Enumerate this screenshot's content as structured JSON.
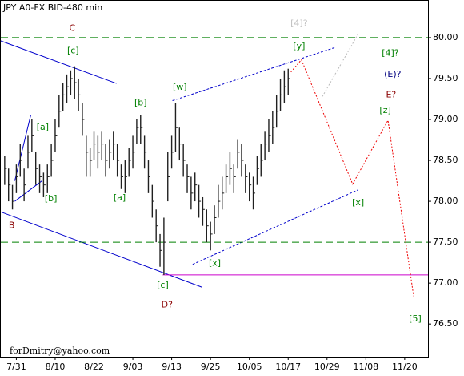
{
  "chart_data": {
    "type": "ohlc",
    "title": "JPY A0-FX BID-480 min",
    "footer": "forDmitry@yahoo.com",
    "bar_color": "#202020",
    "x": [
      -3,
      -2,
      -1,
      0,
      1,
      2,
      3,
      4,
      5,
      6,
      7,
      8,
      9,
      10,
      11,
      12,
      13,
      14,
      15,
      16,
      17,
      18,
      19,
      20,
      21,
      22,
      23,
      24,
      25,
      26,
      27,
      28,
      29,
      30,
      31,
      32,
      33,
      34,
      35,
      36,
      37,
      38,
      39,
      40,
      41,
      42,
      43,
      44,
      45,
      46,
      47,
      48,
      49,
      50,
      51,
      52,
      53,
      54,
      55,
      56,
      57,
      58,
      59,
      60,
      61,
      62,
      63,
      64,
      65,
      66,
      67,
      68,
      69,
      70
    ],
    "high": [
      78.55,
      78.4,
      78.2,
      78.45,
      78.7,
      78.4,
      78.8,
      79.0,
      78.6,
      78.45,
      78.35,
      78.45,
      78.7,
      79.0,
      79.3,
      79.45,
      79.55,
      79.6,
      79.65,
      79.5,
      79.2,
      78.8,
      78.65,
      78.85,
      78.8,
      78.85,
      78.7,
      78.75,
      78.85,
      78.7,
      78.45,
      78.5,
      78.65,
      78.8,
      79.0,
      79.05,
      78.8,
      78.5,
      78.2,
      77.9,
      77.6,
      77.8,
      78.6,
      78.8,
      79.2,
      78.9,
      78.7,
      78.45,
      78.3,
      78.35,
      78.2,
      78.05,
      77.9,
      77.75,
      77.95,
      78.2,
      78.3,
      78.45,
      78.6,
      78.45,
      78.75,
      78.7,
      78.45,
      78.35,
      78.3,
      78.55,
      78.7,
      78.85,
      79.0,
      79.1,
      79.3,
      79.5,
      79.6,
      79.62
    ],
    "low": [
      78.2,
      78.0,
      77.9,
      78.1,
      78.3,
      78.0,
      78.4,
      78.6,
      78.2,
      78.1,
      78.05,
      78.1,
      78.3,
      78.6,
      78.9,
      79.1,
      79.2,
      79.3,
      79.25,
      79.1,
      78.8,
      78.3,
      78.3,
      78.5,
      78.4,
      78.5,
      78.3,
      78.4,
      78.5,
      78.3,
      78.15,
      78.1,
      78.3,
      78.4,
      78.7,
      78.7,
      78.4,
      78.1,
      77.8,
      77.5,
      77.2,
      77.1,
      78.0,
      78.4,
      78.6,
      78.5,
      78.3,
      78.1,
      77.9,
      78.0,
      77.8,
      77.7,
      77.5,
      77.4,
      77.6,
      77.8,
      77.9,
      78.1,
      78.2,
      78.1,
      78.4,
      78.3,
      78.1,
      78.0,
      77.9,
      78.2,
      78.3,
      78.5,
      78.6,
      78.7,
      78.9,
      79.1,
      79.2,
      79.3
    ],
    "close": [
      78.4,
      78.2,
      78.0,
      78.3,
      78.5,
      78.2,
      78.6,
      78.8,
      78.4,
      78.3,
      78.2,
      78.3,
      78.5,
      78.8,
      79.1,
      79.3,
      79.4,
      79.5,
      79.45,
      79.3,
      79.0,
      78.6,
      78.5,
      78.7,
      78.6,
      78.7,
      78.5,
      78.6,
      78.7,
      78.5,
      78.3,
      78.3,
      78.5,
      78.6,
      78.9,
      78.9,
      78.6,
      78.3,
      78.0,
      77.7,
      77.4,
      77.5,
      78.3,
      78.6,
      78.9,
      78.7,
      78.5,
      78.3,
      78.1,
      78.2,
      78.0,
      77.9,
      77.7,
      77.6,
      77.8,
      78.0,
      78.1,
      78.3,
      78.4,
      78.3,
      78.6,
      78.5,
      78.3,
      78.2,
      78.1,
      78.4,
      78.5,
      78.7,
      78.8,
      78.9,
      79.1,
      79.3,
      79.4,
      79.5
    ],
    "xlim": [
      -4,
      106
    ],
    "xticks": [
      {
        "value": 0,
        "label": "7/31"
      },
      {
        "value": 10,
        "label": "8/10"
      },
      {
        "value": 20,
        "label": "8/22"
      },
      {
        "value": 30,
        "label": "9/03"
      },
      {
        "value": 40,
        "label": "9/13"
      },
      {
        "value": 50,
        "label": "9/25"
      },
      {
        "value": 60,
        "label": "10/05"
      },
      {
        "value": 70,
        "label": "10/17"
      },
      {
        "value": 80,
        "label": "10/29"
      },
      {
        "value": 90,
        "label": "11/08"
      },
      {
        "value": 100,
        "label": "11/20"
      }
    ],
    "ylim": [
      76.1,
      80.45
    ],
    "yticks": [
      {
        "value": 76.5,
        "label": "76.50"
      },
      {
        "value": 77,
        "label": "77.00"
      },
      {
        "value": 77.5,
        "label": "77.50"
      },
      {
        "value": 78,
        "label": "78.00"
      },
      {
        "value": 78.5,
        "label": "78.50"
      },
      {
        "value": 79,
        "label": "79.00"
      },
      {
        "value": 79.5,
        "label": "79.50"
      },
      {
        "value": 80,
        "label": "80.00"
      }
    ],
    "lines": [
      {
        "color": "#0000cc",
        "dash": "solid",
        "x": [
          -4,
          25.8
        ],
        "y": [
          79.96,
          79.44
        ]
      },
      {
        "color": "#0000cc",
        "dash": "solid",
        "x": [
          -4,
          47.8
        ],
        "y": [
          77.87,
          76.95
        ]
      },
      {
        "color": "#0000cc",
        "dash": "solid",
        "x": [
          -0.4,
          3.7
        ],
        "y": [
          78.25,
          79.05
        ]
      },
      {
        "color": "#0000cc",
        "dash": "solid",
        "x": [
          -0.4,
          6.6
        ],
        "y": [
          78.0,
          78.25
        ]
      },
      {
        "color": "#0000cc",
        "dash": "dashed",
        "x": [
          40.2,
          82.1
        ],
        "y": [
          79.23,
          79.88
        ]
      },
      {
        "color": "#0000cc",
        "dash": "dashed",
        "x": [
          45.4,
          88.0
        ],
        "y": [
          77.23,
          78.14
        ]
      },
      {
        "color": "#cc00cc",
        "dash": "solid",
        "x": [
          37.7,
          106
        ],
        "y": [
          77.1,
          77.1
        ]
      },
      {
        "color": "#008000",
        "dash": "long",
        "x": [
          -4,
          106
        ],
        "y": [
          80.0,
          80.0
        ]
      },
      {
        "color": "#008000",
        "dash": "long",
        "x": [
          -4,
          106
        ],
        "y": [
          77.5,
          77.5
        ]
      },
      {
        "color": "#ee0000",
        "dash": "dotted",
        "x": [
          70.7,
          73.4,
          86.6,
          95.7,
          102.3
        ],
        "y": [
          79.58,
          79.73,
          78.21,
          78.99,
          76.84
        ]
      },
      {
        "color": "#bbbbbb",
        "dash": "dotted",
        "x": [
          78.8,
          88.2
        ],
        "y": [
          79.28,
          80.06
        ]
      }
    ],
    "big_labels": [
      {
        "text": "C",
        "color": "#8b0000",
        "x": 14.4,
        "y": 80.11
      },
      {
        "text": "B",
        "color": "#8b0000",
        "x": -1.2,
        "y": 77.7
      },
      {
        "text": "D?",
        "color": "#8b0000",
        "x": 38.8,
        "y": 76.73
      },
      {
        "text": "[4]?",
        "color": "#c0c0c0",
        "x": 72.8,
        "y": 80.17
      },
      {
        "text": "[4]?",
        "color": "#008000",
        "x": 96.3,
        "y": 79.81
      },
      {
        "text": "(E)?",
        "color": "#000080",
        "x": 96.9,
        "y": 79.55
      },
      {
        "text": "E?",
        "color": "#8b0000",
        "x": 96.5,
        "y": 79.3
      },
      {
        "text": "[5]",
        "color": "#008000",
        "x": 102.7,
        "y": 76.56
      }
    ],
    "small_labels": [
      {
        "text": "[c]",
        "color": "#008000",
        "x": 14.6,
        "y": 79.84
      },
      {
        "text": "[a]",
        "color": "#008000",
        "x": 6.8,
        "y": 78.9
      },
      {
        "text": "[b]",
        "color": "#008000",
        "x": 8.9,
        "y": 78.03
      },
      {
        "text": "[b]",
        "color": "#008000",
        "x": 32,
        "y": 79.2
      },
      {
        "text": "[a]",
        "color": "#008000",
        "x": 26.6,
        "y": 78.04
      },
      {
        "text": "[w]",
        "color": "#008000",
        "x": 42.1,
        "y": 79.39
      },
      {
        "text": "[x]",
        "color": "#008000",
        "x": 51.1,
        "y": 77.24
      },
      {
        "text": "[c]",
        "color": "#008000",
        "x": 37.7,
        "y": 76.97
      },
      {
        "text": "[y]",
        "color": "#008000",
        "x": 72.8,
        "y": 79.89
      },
      {
        "text": "[x]",
        "color": "#008000",
        "x": 88,
        "y": 77.98
      },
      {
        "text": "[z]",
        "color": "#008000",
        "x": 95,
        "y": 79.11
      }
    ]
  }
}
